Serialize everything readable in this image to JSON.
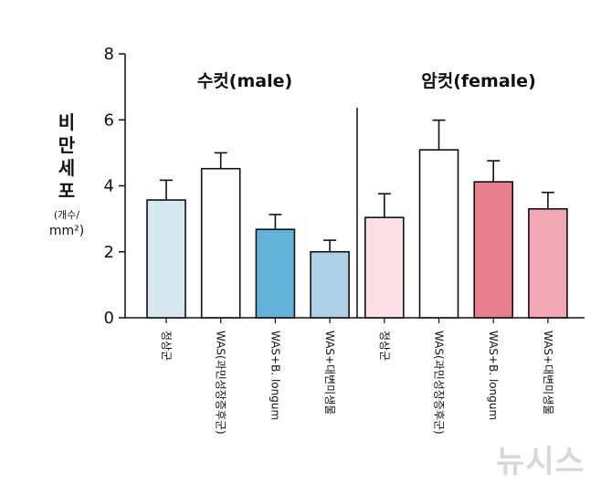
{
  "chart_data": {
    "type": "bar",
    "ylabel": "비만세포",
    "yunit_line1": "(개수/",
    "yunit_line2": "mm²)",
    "ylim": [
      0,
      8
    ],
    "yticks": [
      "0",
      "2",
      "4",
      "6",
      "8"
    ],
    "group_labels": [
      "수컷(male)",
      "암컷(female)"
    ],
    "categories": [
      "정상군",
      "WAS(과민성장증후군)",
      "WAS+B. longum",
      "WAS+대변미생물",
      "정상군",
      "WAS(과민성장증후군)",
      "WAS+B. longum",
      "WAS+대변미생물"
    ],
    "values": [
      3.57,
      4.52,
      2.68,
      2.0,
      3.04,
      5.09,
      4.12,
      3.3
    ],
    "errors": [
      0.6,
      0.48,
      0.45,
      0.35,
      0.72,
      0.9,
      0.64,
      0.5
    ],
    "colors": [
      "#d7e8f1",
      "#ffffff",
      "#62b3d9",
      "#aed1e8",
      "#fde0e6",
      "#ffffff",
      "#e87d8e",
      "#f1a8b4"
    ],
    "grid": false
  },
  "watermark": "뉴시스"
}
